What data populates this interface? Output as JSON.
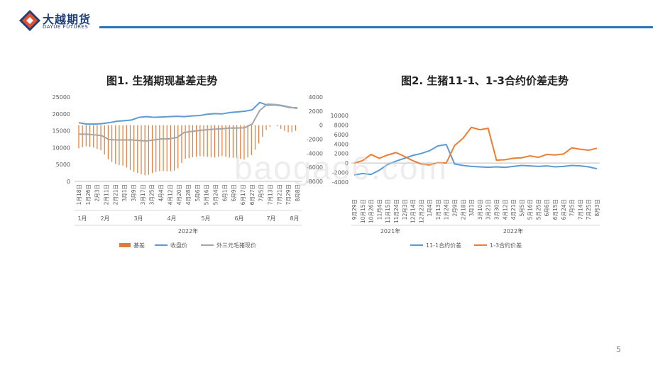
{
  "brand": {
    "name": "大越期货",
    "subtitle": "DAYUE FUTURES",
    "colors": {
      "primary": "#1d3f7a",
      "accent": "#e4502c",
      "line": "#2a73b8"
    }
  },
  "watermark": "baogao6.com",
  "page_number": "5",
  "chart_data": [
    {
      "type": "bar+line",
      "title": "图1. 生猪期现基差走势",
      "left_axis": {
        "ylim": [
          0,
          25000
        ],
        "ticks": [
          "25000",
          "20000",
          "15000",
          "10000",
          "5000",
          "0"
        ]
      },
      "right_axis": {
        "ylim": [
          -8000,
          4000
        ],
        "ticks": [
          "4000",
          "2000",
          "0",
          "-2000",
          "-4000",
          "-6000",
          "-8000"
        ]
      },
      "x_tick_labels": [
        "1月18日",
        "1月26日",
        "2月3日",
        "2月11日",
        "2月21日",
        "3月1日",
        "3月9日",
        "3月17日",
        "3月25日",
        "4月4日",
        "4月12日",
        "4月20日",
        "4月28日",
        "5月6日",
        "5月16日",
        "5月24日",
        "6月1日",
        "6月9日",
        "6月17日",
        "6月27日",
        "7月5日",
        "7月13日",
        "7月21日",
        "7月29日",
        "8月8日"
      ],
      "month_labels": [
        "1月",
        "2月",
        "3月",
        "4月",
        "5月",
        "6月",
        "7月",
        "8月"
      ],
      "year_label": "2022年",
      "legend": [
        "基差",
        "收盘价",
        "外三元毛猪现价"
      ],
      "colors": {
        "基差": "#e07b39",
        "收盘价": "#5b9bd5",
        "外三元毛猪现价": "#a5a5a5"
      },
      "series": [
        {
          "name": "收盘价",
          "axis": "left",
          "values": [
            17400,
            17000,
            17000,
            17100,
            17400,
            17800,
            18000,
            18200,
            19000,
            19200,
            19000,
            19100,
            19200,
            19300,
            19200,
            19400,
            19500,
            19900,
            20100,
            20000,
            20400,
            20600,
            20800,
            21200,
            23400,
            22600,
            22700,
            22400,
            21900,
            21800
          ]
        },
        {
          "name": "外三元毛猪现价",
          "axis": "left",
          "values": [
            14000,
            14000,
            13800,
            13600,
            12400,
            12300,
            12300,
            12300,
            12100,
            12000,
            12300,
            12600,
            12600,
            13000,
            14500,
            14800,
            15100,
            15300,
            15500,
            15600,
            15800,
            15800,
            15900,
            17000,
            21000,
            22900,
            22800,
            22500,
            22000,
            21600
          ]
        },
        {
          "name": "基差",
          "axis": "right",
          "values": [
            -3300,
            -3000,
            -3200,
            -3600,
            -5000,
            -5600,
            -5800,
            -6500,
            -6900,
            -7200,
            -6700,
            -6500,
            -6600,
            -6400,
            -4800,
            -4600,
            -4400,
            -4500,
            -4600,
            -4400,
            -4600,
            -4700,
            -4900,
            -4200,
            -2400,
            -400,
            100,
            -700,
            -1100,
            -700
          ]
        }
      ]
    },
    {
      "type": "line",
      "title": "图2. 生猪11-1、1-3合约价差走势",
      "ylim": [
        -4000,
        10000
      ],
      "y_ticks": [
        "10000",
        "8000",
        "6000",
        "4000",
        "2000",
        "0",
        "-2000",
        "-4000"
      ],
      "x_tick_labels": [
        "9月29日",
        "10月15日",
        "10月26日",
        "11月4日",
        "11月15日",
        "11月24日",
        "12月3日",
        "12月14日",
        "12月23日",
        "1月4日",
        "1月13日",
        "1月24日",
        "2月9日",
        "2月18日",
        "3月1日",
        "3月10日",
        "3月21日",
        "3月30日",
        "4月12日",
        "4月21日",
        "5月5日",
        "5月16日",
        "5月25日",
        "6月6日",
        "6月15日",
        "6月24日",
        "7月5日",
        "7月14日",
        "7月25日",
        "8月3日"
      ],
      "year_labels": [
        "2021年",
        "2022年"
      ],
      "legend": [
        "11-1合约价差",
        "1-3合约价差"
      ],
      "colors": {
        "11-1合约价差": "#5b9bd5",
        "1-3合约价差": "#ed7d31"
      },
      "series": [
        {
          "name": "11-1合约价差",
          "values": [
            -2500,
            -2200,
            -2400,
            -1500,
            -300,
            400,
            1000,
            1600,
            2000,
            2600,
            3600,
            3900,
            -200,
            -500,
            -700,
            -800,
            -900,
            -800,
            -900,
            -700,
            -500,
            -600,
            -700,
            -600,
            -800,
            -700,
            -500,
            -600,
            -800,
            -1200
          ]
        },
        {
          "name": "1-3合约价差",
          "values": [
            0,
            500,
            1800,
            1000,
            1700,
            2200,
            1400,
            500,
            -200,
            -400,
            100,
            0,
            3700,
            5200,
            7500,
            7000,
            7300,
            600,
            700,
            1000,
            1100,
            1500,
            1200,
            1800,
            1700,
            1900,
            3200,
            2900,
            2700,
            3100
          ]
        }
      ]
    }
  ]
}
